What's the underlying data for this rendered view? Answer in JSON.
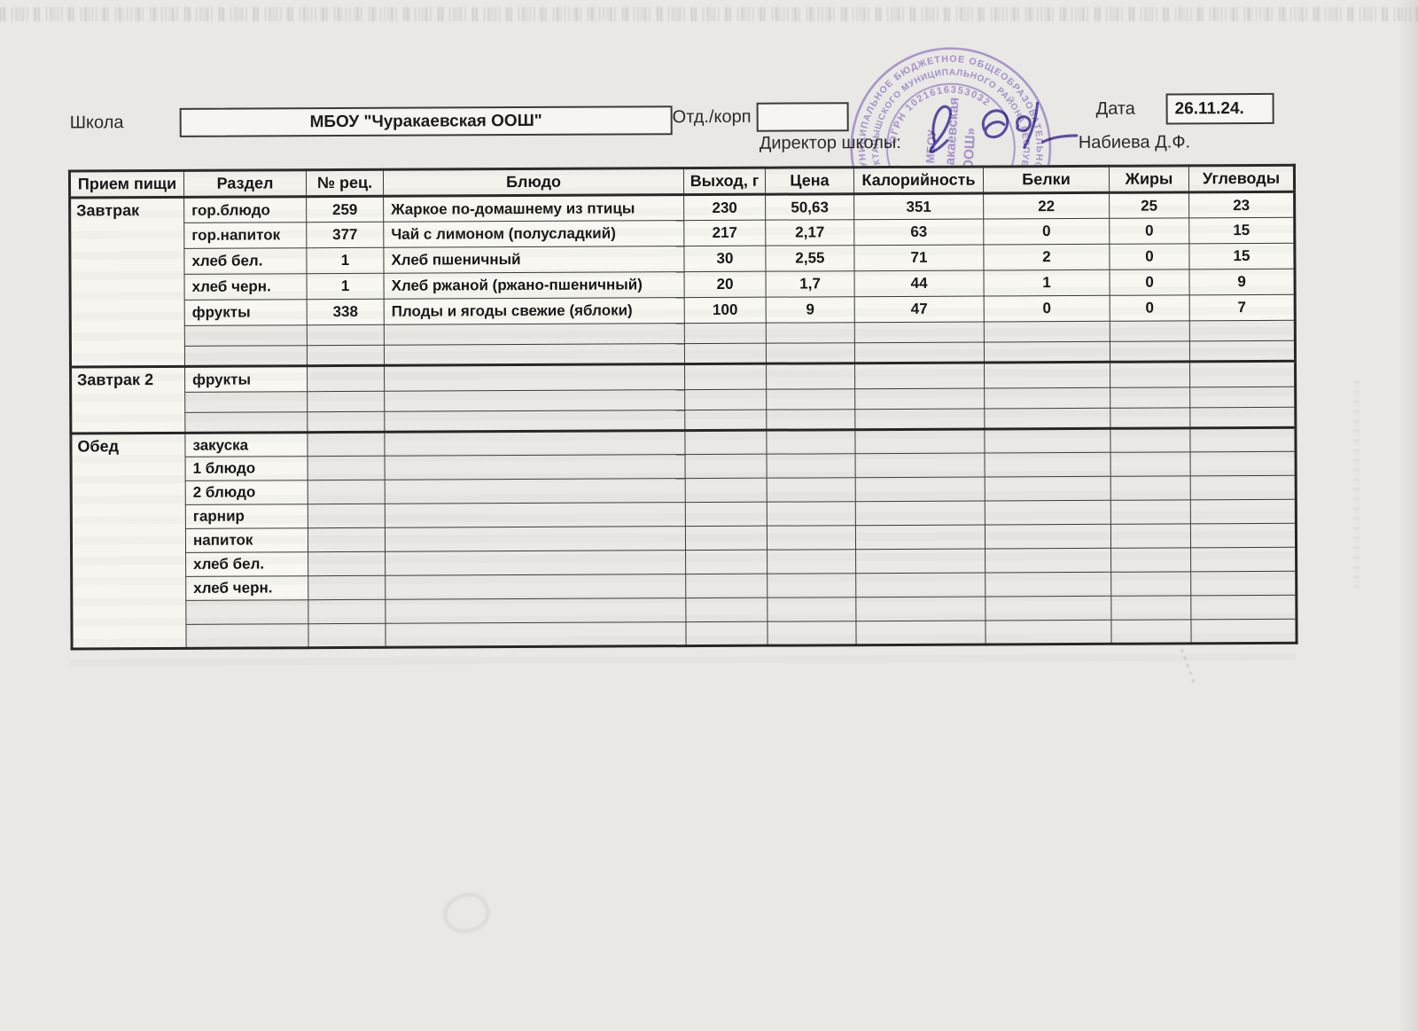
{
  "header": {
    "school_label": "Школа",
    "school_name": "МБОУ \"Чуракаевская ООШ\"",
    "dept_label": "Отд./корп",
    "dept_value": "",
    "date_label": "Дата",
    "date_value": "26.11.24.",
    "director_label": "Директор школы:",
    "director_name": "Набиева Д.Ф."
  },
  "stamp": {
    "outer_ring_text": "МУНИЦИПАЛЬНОЕ БЮДЖЕТНОЕ ОБЩЕОБРАЗОВАТЕЛЬНОЕ УЧРЕЖДЕНИЕ",
    "middle_ring_text": "АКТАНЫШСКОГО МУНИЦИПАЛЬНОГО РАЙОНА РЕСПУБЛИКИ ТАТАРСТАН ✱",
    "ogrn_text": "ОГРН 1021616353032",
    "center_line1": "МБОУ",
    "center_line2": "«Чуракаевская",
    "center_line3": "ООШ»"
  },
  "table": {
    "headers": [
      "Прием пищи",
      "Раздел",
      "№ рец.",
      "Блюдо",
      "Выход, г",
      "Цена",
      "Калорийность",
      "Белки",
      "Жиры",
      "Углеводы"
    ],
    "sections": [
      {
        "meal": "Завтрак",
        "rows": [
          [
            "гор.блюдо",
            "259",
            "Жаркое по-домашнему из птицы",
            "230",
            "50,63",
            "351",
            "22",
            "25",
            "23"
          ],
          [
            "гор.напиток",
            "377",
            "Чай с лимоном (полусладкий)",
            "217",
            "2,17",
            "63",
            "0",
            "0",
            "15"
          ],
          [
            "хлеб бел.",
            "1",
            "Хлеб пшеничный",
            "30",
            "2,55",
            "71",
            "2",
            "0",
            "15"
          ],
          [
            "хлеб черн.",
            "1",
            "Хлеб ржаной (ржано-пшеничный)",
            "20",
            "1,7",
            "44",
            "1",
            "0",
            "9"
          ],
          [
            "фрукты",
            "338",
            "Плоды и ягоды свежие (яблоки)",
            "100",
            "9",
            "47",
            "0",
            "0",
            "7"
          ],
          [
            "",
            "",
            "",
            "",
            "",
            "",
            "",
            "",
            ""
          ],
          [
            "",
            "",
            "",
            "",
            "",
            "",
            "",
            "",
            ""
          ]
        ]
      },
      {
        "meal": "Завтрак 2",
        "rows": [
          [
            "фрукты",
            "",
            "",
            "",
            "",
            "",
            "",
            "",
            ""
          ],
          [
            "",
            "",
            "",
            "",
            "",
            "",
            "",
            "",
            ""
          ],
          [
            "",
            "",
            "",
            "",
            "",
            "",
            "",
            "",
            ""
          ]
        ]
      },
      {
        "meal": "Обед",
        "rows": [
          [
            "закуска",
            "",
            "",
            "",
            "",
            "",
            "",
            "",
            ""
          ],
          [
            "1 блюдо",
            "",
            "",
            "",
            "",
            "",
            "",
            "",
            ""
          ],
          [
            "2 блюдо",
            "",
            "",
            "",
            "",
            "",
            "",
            "",
            ""
          ],
          [
            "гарнир",
            "",
            "",
            "",
            "",
            "",
            "",
            "",
            ""
          ],
          [
            "напиток",
            "",
            "",
            "",
            "",
            "",
            "",
            "",
            ""
          ],
          [
            "хлеб бел.",
            "",
            "",
            "",
            "",
            "",
            "",
            "",
            ""
          ],
          [
            "хлеб черн.",
            "",
            "",
            "",
            "",
            "",
            "",
            "",
            ""
          ],
          [
            "",
            "",
            "",
            "",
            "",
            "",
            "",
            "",
            ""
          ],
          [
            "",
            "",
            "",
            "",
            "",
            "",
            "",
            "",
            ""
          ]
        ]
      }
    ]
  },
  "colors": {
    "stamp_purple": "#8d6fc1",
    "signature_ink": "#4b3f9d",
    "table_border": "#262626"
  }
}
